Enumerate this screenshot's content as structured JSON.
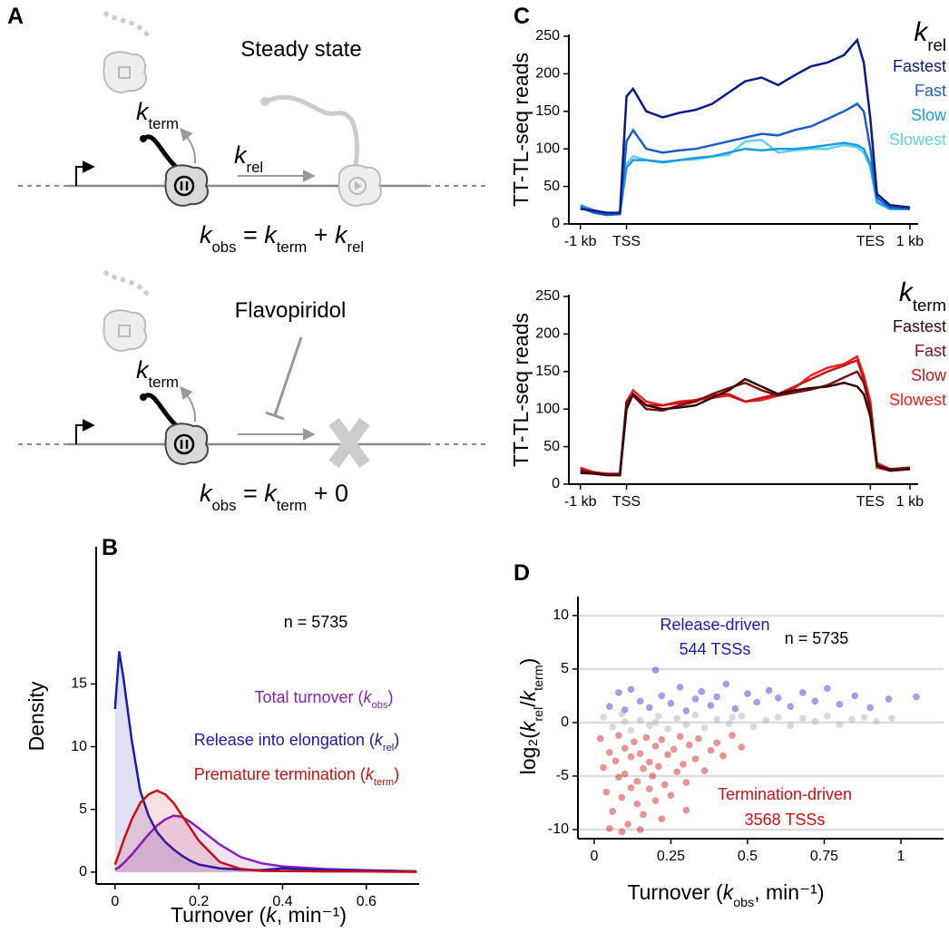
{
  "panel_labels": [
    "A",
    "B",
    "C",
    "D"
  ],
  "diagram": {
    "steady_state": {
      "title": "Steady state",
      "k_term": [
        {
          "i": "k"
        },
        {
          "sub": "term"
        }
      ],
      "k_rel": [
        {
          "i": "k"
        },
        {
          "sub": "rel"
        }
      ],
      "equation": [
        {
          "i": "k"
        },
        {
          "sub": "obs"
        },
        " = ",
        {
          "i": "k"
        },
        {
          "sub": "term"
        },
        " + ",
        {
          "i": "k"
        },
        {
          "sub": "rel"
        }
      ]
    },
    "flavopiridol": {
      "title": "Flavopiridol",
      "k_term": [
        {
          "i": "k"
        },
        {
          "sub": "term"
        }
      ],
      "equation": [
        {
          "i": "k"
        },
        {
          "sub": "obs"
        },
        " = ",
        {
          "i": "k"
        },
        {
          "sub": "term"
        },
        " + 0"
      ]
    }
  },
  "chart_data": [
    {
      "type": "area",
      "xlabel": [
        "Turnover (",
        {
          "i": "k"
        },
        ", min⁻¹)"
      ],
      "ylabel": "Density",
      "x": [
        0,
        0.01,
        0.02,
        0.04,
        0.06,
        0.08,
        0.1,
        0.12,
        0.14,
        0.16,
        0.18,
        0.2,
        0.25,
        0.3,
        0.35,
        0.4,
        0.5,
        0.6,
        0.66,
        0.72
      ],
      "series": [
        {
          "name": [
            "Total turnover (",
            {
              "i": "k"
            },
            {
              "sub": "obs"
            },
            ")"
          ],
          "color": "#8a1fc0",
          "values": [
            0.2,
            0.4,
            0.7,
            1.4,
            2.2,
            3.0,
            3.7,
            4.2,
            4.5,
            4.4,
            4.0,
            3.5,
            2.2,
            1.2,
            0.7,
            0.45,
            0.25,
            0.15,
            0.1,
            0.05
          ]
        },
        {
          "name": [
            "Release into elongation (",
            {
              "i": "k"
            },
            {
              "sub": "rel"
            },
            ")"
          ],
          "color": "#1a1ab4",
          "values": [
            13,
            17.6,
            15.5,
            10.5,
            6.5,
            4.5,
            3.2,
            2.4,
            1.8,
            1.3,
            0.9,
            0.6,
            0.3,
            0.2,
            0.15,
            0.3,
            0.15,
            0.1,
            0.1,
            0.05
          ]
        },
        {
          "name": [
            "Premature termination (",
            {
              "i": "k"
            },
            {
              "sub": "term"
            },
            ")"
          ],
          "color": "#c81010",
          "values": [
            0.6,
            1.5,
            2.5,
            4.2,
            5.5,
            6.2,
            6.5,
            6.2,
            5.5,
            4.5,
            3.5,
            2.5,
            0.8,
            0.25,
            0.1,
            0.08,
            0.05,
            0.05,
            0.03,
            0.02
          ]
        }
      ],
      "annotations": [
        "n =  5735"
      ],
      "xlim": [
        -0.045,
        0.726
      ],
      "xticks": [
        0,
        0.2,
        0.4,
        0.6
      ],
      "ylim": [
        -0.95,
        25.8
      ],
      "yticks": [
        0,
        5,
        10,
        15
      ],
      "grid": false
    },
    {
      "type": "line",
      "ylabel": "TT-TL-seq reads",
      "legend_title": [
        {
          "i": "k"
        },
        {
          "sub": "rel"
        }
      ],
      "x": [
        0,
        4,
        8,
        12,
        14,
        16,
        20,
        25,
        30,
        35,
        40,
        45,
        50,
        55,
        60,
        65,
        70,
        75,
        80,
        84,
        86,
        88,
        90,
        94,
        100
      ],
      "series": [
        {
          "name": "Fastest",
          "color": "#0a1a8a",
          "values": [
            20,
            18,
            15,
            15,
            170,
            180,
            150,
            142,
            148,
            152,
            160,
            175,
            190,
            195,
            185,
            198,
            210,
            215,
            225,
            245,
            215,
            140,
            40,
            25,
            22
          ]
        },
        {
          "name": "Fast",
          "color": "#1a5cc8",
          "values": [
            22,
            15,
            12,
            13,
            110,
            125,
            100,
            95,
            98,
            100,
            105,
            110,
            115,
            120,
            118,
            125,
            130,
            140,
            150,
            160,
            150,
            100,
            35,
            22,
            20
          ]
        },
        {
          "name": "Slow",
          "color": "#1a9be0",
          "values": [
            25,
            18,
            14,
            14,
            75,
            85,
            85,
            82,
            85,
            88,
            90,
            95,
            100,
            98,
            100,
            100,
            102,
            105,
            108,
            105,
            100,
            80,
            30,
            20,
            20
          ]
        },
        {
          "name": "Slowest",
          "color": "#5fd0f0",
          "values": [
            22,
            16,
            13,
            14,
            80,
            90,
            85,
            83,
            85,
            86,
            90,
            92,
            110,
            112,
            95,
            98,
            100,
            100,
            105,
            102,
            95,
            75,
            28,
            20,
            20
          ]
        }
      ],
      "xlim": [
        -3.5,
        102.5
      ],
      "xticks": [
        {
          "value": 0,
          "label": "-1 kb"
        },
        {
          "value": 14,
          "label": "TSS"
        },
        {
          "value": 88,
          "label": "TES"
        },
        {
          "value": 100,
          "label": "1 kb"
        }
      ],
      "ylim": [
        0,
        250
      ],
      "yticks": [
        0,
        50,
        100,
        150,
        200,
        250
      ],
      "grid": false
    },
    {
      "type": "line",
      "ylabel": "TT-TL-seq reads",
      "legend_title": [
        {
          "i": "k"
        },
        {
          "sub": "term"
        }
      ],
      "x": [
        0,
        4,
        8,
        12,
        14,
        16,
        20,
        25,
        30,
        35,
        40,
        45,
        50,
        55,
        60,
        65,
        70,
        75,
        80,
        84,
        86,
        88,
        90,
        94,
        100
      ],
      "series": [
        {
          "name": "Fastest",
          "color": "#3a0505",
          "values": [
            15,
            14,
            12,
            12,
            100,
            120,
            105,
            100,
            102,
            105,
            115,
            125,
            140,
            130,
            120,
            125,
            128,
            130,
            135,
            130,
            120,
            90,
            25,
            18,
            20
          ]
        },
        {
          "name": "Fast",
          "color": "#7a1010",
          "values": [
            18,
            15,
            13,
            12,
            110,
            118,
            100,
            98,
            105,
            110,
            120,
            128,
            135,
            125,
            118,
            122,
            126,
            132,
            142,
            150,
            135,
            100,
            25,
            20,
            22
          ]
        },
        {
          "name": "Slow",
          "color": "#c81414",
          "values": [
            20,
            16,
            13,
            13,
            105,
            120,
            105,
            105,
            108,
            112,
            118,
            120,
            110,
            115,
            120,
            130,
            140,
            150,
            158,
            165,
            140,
            100,
            22,
            18,
            20
          ]
        },
        {
          "name": "Slowest",
          "color": "#f02020",
          "values": [
            22,
            16,
            14,
            14,
            110,
            125,
            110,
            105,
            110,
            112,
            115,
            118,
            110,
            112,
            118,
            128,
            145,
            155,
            160,
            170,
            145,
            110,
            28,
            20,
            22
          ]
        }
      ],
      "xlim": [
        -3.5,
        102.5
      ],
      "xticks": [
        {
          "value": 0,
          "label": "-1 kb"
        },
        {
          "value": 14,
          "label": "TSS"
        },
        {
          "value": 88,
          "label": "TES"
        },
        {
          "value": 100,
          "label": "1 kb"
        }
      ],
      "ylim": [
        0,
        250
      ],
      "yticks": [
        0,
        50,
        100,
        150,
        200,
        250
      ],
      "grid": false
    },
    {
      "type": "scatter",
      "xlabel": [
        "Turnover (",
        {
          "i": "k"
        },
        {
          "sub": "obs"
        },
        ", min⁻¹)"
      ],
      "ylabel": [
        "log₂(",
        {
          "i": "k"
        },
        {
          "sub": "rel"
        },
        "/",
        {
          "i": "k"
        },
        {
          "sub": "term"
        },
        ")"
      ],
      "series": [
        {
          "color": "#2a2ad0",
          "alpha": 0.45,
          "x": [
            0.05,
            0.08,
            0.1,
            0.12,
            0.15,
            0.18,
            0.2,
            0.22,
            0.25,
            0.28,
            0.3,
            0.33,
            0.35,
            0.38,
            0.4,
            0.43,
            0.46,
            0.5,
            0.53,
            0.57,
            0.6,
            0.64,
            0.68,
            0.72,
            0.76,
            0.8,
            0.85,
            0.9,
            0.96,
            1.05
          ],
          "values": [
            1.5,
            2.8,
            1.2,
            3.1,
            2.0,
            1.4,
            4.9,
            2.5,
            1.8,
            3.3,
            1.1,
            2.2,
            2.9,
            1.6,
            2.4,
            3.6,
            1.3,
            2.7,
            1.9,
            3.0,
            2.3,
            1.5,
            2.8,
            2.0,
            3.2,
            1.7,
            2.5,
            1.4,
            2.2,
            2.4
          ]
        },
        {
          "color": "#b4b4b4",
          "alpha": 0.5,
          "x": [
            0.03,
            0.06,
            0.09,
            0.12,
            0.15,
            0.18,
            0.21,
            0.24,
            0.27,
            0.3,
            0.33,
            0.36,
            0.4,
            0.44,
            0.48,
            0.52,
            0.56,
            0.6,
            0.64,
            0.68,
            0.72,
            0.76,
            0.8,
            0.84,
            0.88,
            0.92,
            0.97,
            0.2,
            0.1,
            0.45
          ],
          "values": [
            0.5,
            -0.4,
            0.8,
            -0.7,
            0.2,
            -0.3,
            0.6,
            -0.6,
            0.4,
            -0.2,
            0.7,
            -0.5,
            0.3,
            -0.1,
            0.6,
            -0.4,
            0.2,
            0.5,
            -0.3,
            0.4,
            0.1,
            0.6,
            -0.2,
            0.3,
            0.5,
            0.1,
            0.4,
            0.0,
            0.1,
            0.5
          ]
        },
        {
          "color": "#d01010",
          "alpha": 0.45,
          "x": [
            0.02,
            0.03,
            0.04,
            0.05,
            0.06,
            0.07,
            0.08,
            0.08,
            0.09,
            0.1,
            0.1,
            0.11,
            0.12,
            0.12,
            0.13,
            0.14,
            0.14,
            0.15,
            0.16,
            0.16,
            0.17,
            0.18,
            0.18,
            0.19,
            0.2,
            0.2,
            0.21,
            0.22,
            0.23,
            0.24,
            0.25,
            0.26,
            0.27,
            0.28,
            0.29,
            0.3,
            0.31,
            0.33,
            0.34,
            0.36,
            0.38,
            0.4,
            0.42,
            0.45,
            0.48,
            0.05,
            0.09,
            0.3,
            0.15,
            0.22
          ],
          "values": [
            -1.5,
            -4.2,
            -6.5,
            -2.8,
            -8.3,
            -3.6,
            -5.1,
            -1.2,
            -7.0,
            -2.4,
            -4.8,
            -9.5,
            -3.2,
            -6.1,
            -1.8,
            -5.5,
            -7.6,
            -2.9,
            -4.3,
            -8.6,
            -1.4,
            -6.2,
            -3.7,
            -5.0,
            -2.2,
            -7.3,
            -4.1,
            -1.6,
            -5.8,
            -3.0,
            -6.8,
            -2.5,
            -4.6,
            -1.3,
            -3.9,
            -5.6,
            -2.1,
            -3.4,
            -1.5,
            -4.5,
            -2.6,
            -1.9,
            -3.1,
            -1.2,
            -2.3,
            -9.9,
            -10.2,
            -8.2,
            -10.0,
            -9.0
          ]
        }
      ],
      "annotations": [
        {
          "text": "Release-driven",
          "color": "#1a1ab4"
        },
        {
          "text": "544 TSSs",
          "color": "#1a1ab4"
        },
        {
          "text": "n =  5735",
          "color": "#000000"
        },
        {
          "text": "Termination-driven",
          "color": "#c81010"
        },
        {
          "text": "3568 TSSs",
          "color": "#c81010"
        }
      ],
      "xlim": [
        -0.053,
        1.139
      ],
      "xticks": [
        0,
        0.25,
        0.5,
        0.75,
        1
      ],
      "ylim": [
        -10.85,
        11.6
      ],
      "yticks": [
        -10,
        -5,
        0,
        5,
        10
      ],
      "grid": true
    }
  ]
}
